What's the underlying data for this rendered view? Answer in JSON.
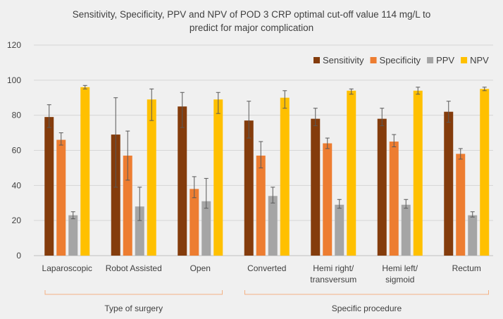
{
  "colors": {
    "background": "#f0f0f0",
    "gridline": "#d6d6d6",
    "axis": "#bfbfbf",
    "text": "#404040",
    "bracket": "#f4b183",
    "error_bar": "#595959"
  },
  "chart_data": {
    "type": "bar",
    "title_line1": "Sensitivity, Specificity, PPV and NPV of POD 3 CRP optimal cut-off value 114 mg/L to",
    "title_line2": "predict for major complication",
    "xlabel": "",
    "ylabel": "",
    "ylim": [
      0,
      120
    ],
    "yticks": [
      0,
      20,
      40,
      60,
      80,
      100,
      120
    ],
    "grid": true,
    "legend_position": "top-right",
    "categories": [
      [
        "Laparoscopic"
      ],
      [
        "Robot Assisted"
      ],
      [
        "Open"
      ],
      [
        "Converted"
      ],
      [
        "Hemi right/",
        "transversum"
      ],
      [
        "Hemi left/",
        "sigmoid"
      ],
      [
        "Rectum"
      ]
    ],
    "series": [
      {
        "name": "Sensitivity",
        "color": "#843c0c",
        "values": [
          79,
          69,
          85,
          77,
          78,
          78,
          82
        ],
        "err_low": [
          73,
          39,
          73,
          67,
          74,
          74,
          76
        ],
        "err_high": [
          86,
          90,
          93,
          88,
          84,
          84,
          88
        ]
      },
      {
        "name": "Specificity",
        "color": "#ed7d31",
        "values": [
          66,
          57,
          38,
          57,
          64,
          65,
          58
        ],
        "err_low": [
          63,
          43,
          33,
          50,
          61,
          62,
          55
        ],
        "err_high": [
          70,
          71,
          45,
          65,
          67,
          69,
          61
        ]
      },
      {
        "name": "PPV",
        "color": "#a5a5a5",
        "values": [
          23,
          28,
          31,
          34,
          29,
          29,
          23
        ],
        "err_low": [
          21,
          20,
          27,
          30,
          27,
          27,
          22
        ],
        "err_high": [
          25,
          39,
          44,
          39,
          32,
          32,
          25
        ]
      },
      {
        "name": "NPV",
        "color": "#ffc000",
        "values": [
          96,
          89,
          89,
          90,
          94,
          94,
          95
        ],
        "err_low": [
          95,
          77,
          81,
          84,
          92,
          92,
          94
        ],
        "err_high": [
          97,
          95,
          93,
          94,
          95,
          96,
          96
        ]
      }
    ],
    "group_labels": [
      {
        "label": "Type of surgery",
        "first_category": 0,
        "last_category": 2
      },
      {
        "label": "Specific procedure",
        "first_category": 3,
        "last_category": 6
      }
    ]
  }
}
